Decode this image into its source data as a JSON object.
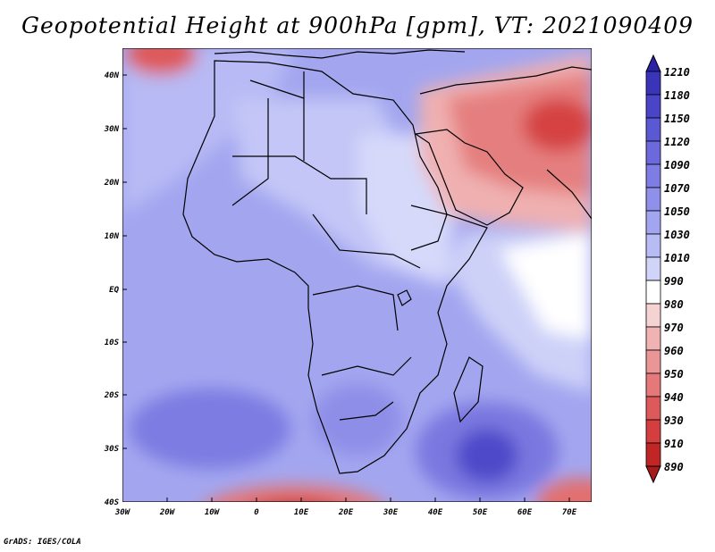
{
  "title": "Geopotential Height at 900hPa [gpm], VT: 2021090409",
  "footer": "GrADS: IGES/COLA",
  "map": {
    "region": "Africa and Middle East",
    "variable": "Geopotential Height",
    "level": "900hPa",
    "units": "gpm",
    "valid_time": "2021090409",
    "lat_labels": [
      "40N",
      "30N",
      "20N",
      "10N",
      "EQ",
      "10S",
      "20S",
      "30S",
      "40S"
    ],
    "lon_labels": [
      "30W",
      "20W",
      "10W",
      "0",
      "10E",
      "20E",
      "30E",
      "40E",
      "50E",
      "60E",
      "70E"
    ]
  },
  "colorbar": {
    "levels": [
      "1210",
      "1180",
      "1150",
      "1120",
      "1090",
      "1070",
      "1050",
      "1030",
      "1010",
      "990",
      "980",
      "970",
      "960",
      "950",
      "940",
      "930",
      "910",
      "890"
    ],
    "colors": [
      "#2b23a7",
      "#3a34b8",
      "#4a45c8",
      "#5b58d3",
      "#6b69dc",
      "#7d7de3",
      "#8f90ea",
      "#a2a5ef",
      "#b8bcf4",
      "#d0d4f8",
      "#ffffff",
      "#f6d3d3",
      "#f0b3b3",
      "#eb9696",
      "#e57878",
      "#de5a5a",
      "#d53e3e",
      "#c02626",
      "#a71b1b"
    ]
  }
}
